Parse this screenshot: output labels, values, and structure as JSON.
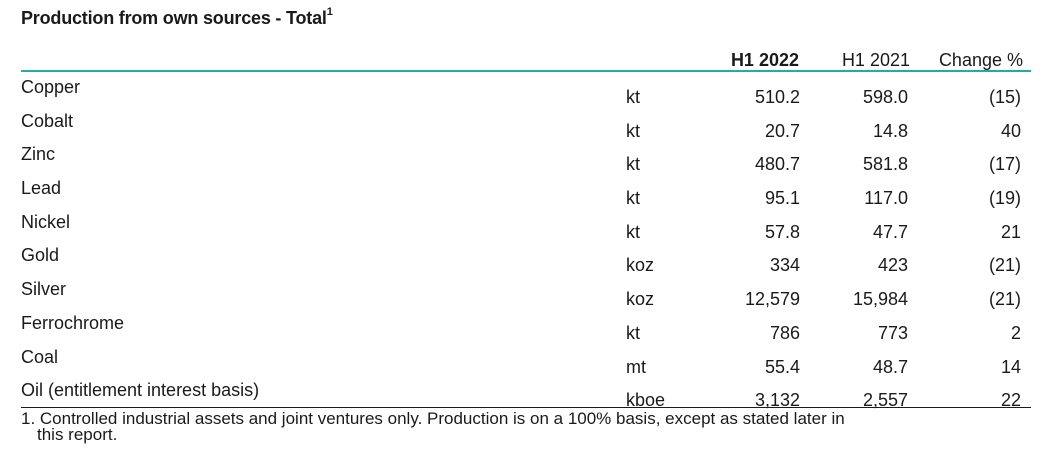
{
  "title": "Production from own sources - Total",
  "title_sup": "1",
  "columns": {
    "h1_2022": "H1 2022",
    "h1_2021": "H1 2021",
    "change": "Change %"
  },
  "rows": [
    {
      "name": "Copper",
      "unit": "kt",
      "h1_2022": "510.2",
      "h1_2021": "598.0",
      "change": "(15)"
    },
    {
      "name": "Cobalt",
      "unit": "kt",
      "h1_2022": "20.7",
      "h1_2021": "14.8",
      "change": "40"
    },
    {
      "name": "Zinc",
      "unit": "kt",
      "h1_2022": "480.7",
      "h1_2021": "581.8",
      "change": "(17)"
    },
    {
      "name": "Lead",
      "unit": "kt",
      "h1_2022": "95.1",
      "h1_2021": "117.0",
      "change": "(19)"
    },
    {
      "name": "Nickel",
      "unit": "kt",
      "h1_2022": "57.8",
      "h1_2021": "47.7",
      "change": "21"
    },
    {
      "name": "Gold",
      "unit": "koz",
      "h1_2022": "334",
      "h1_2021": "423",
      "change": "(21)"
    },
    {
      "name": "Silver",
      "unit": "koz",
      "h1_2022": "12,579",
      "h1_2021": "15,984",
      "change": "(21)"
    },
    {
      "name": "Ferrochrome",
      "unit": "kt",
      "h1_2022": "786",
      "h1_2021": "773",
      "change": "2"
    },
    {
      "name": "Coal",
      "unit": "mt",
      "h1_2022": "55.4",
      "h1_2021": "48.7",
      "change": "14"
    },
    {
      "name": "Oil (entitlement interest basis)",
      "unit": "kboe",
      "h1_2022": "3,132",
      "h1_2021": "2,557",
      "change": "22"
    }
  ],
  "footnote": {
    "line1": "1. Controlled industrial assets and joint ventures only. Production is on a 100% basis, except as stated later in",
    "line2": "this report."
  },
  "colors": {
    "header_rule": "#2aa8a8",
    "text": "#1a1a1a"
  }
}
